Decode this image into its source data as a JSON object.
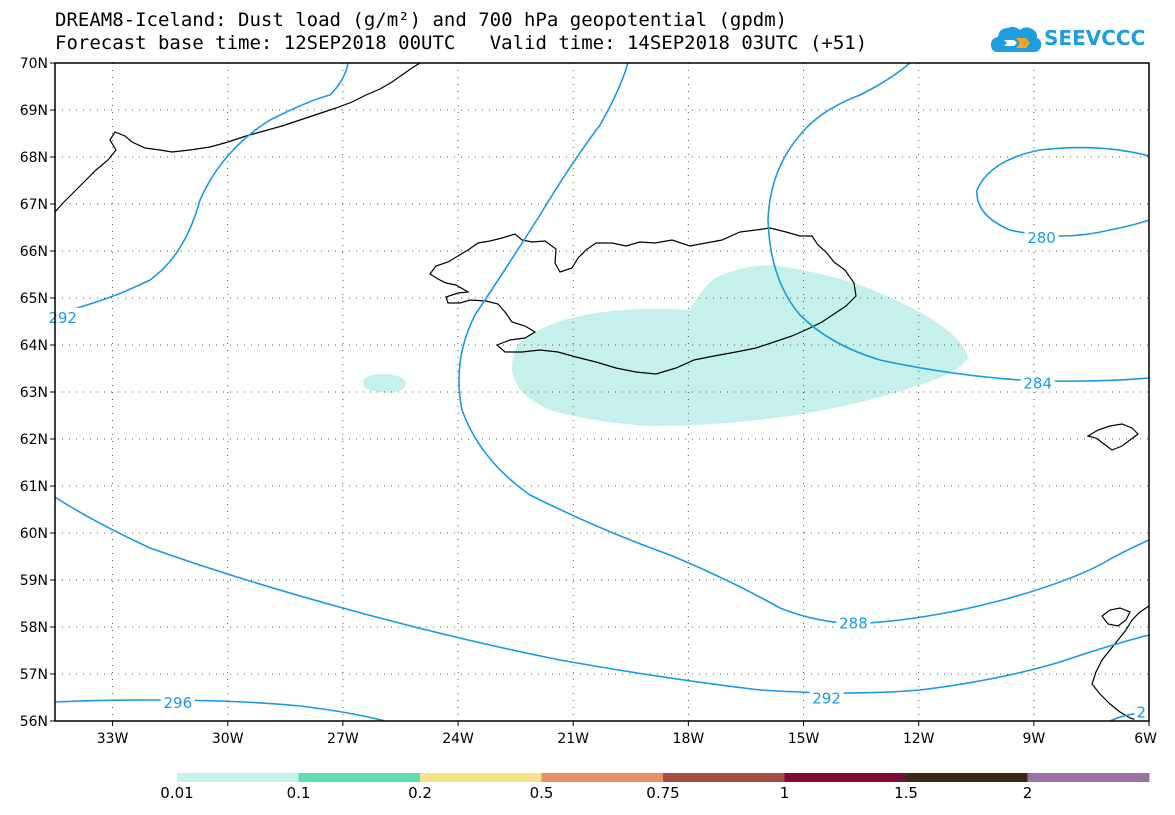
{
  "title": {
    "line1": "DREAM8-Iceland: Dust load (g/m²) and 700 hPa geopotential (gpdm)",
    "base_time": "Forecast base time: 12SEP2018 00UTC",
    "valid_time": "Valid time: 14SEP2018 03UTC (+51)"
  },
  "logo": {
    "text": "SEEVCCC",
    "icon": "cloud-logo-icon",
    "color": "#1e9ee0"
  },
  "map": {
    "projection": "lat-lon",
    "lon_range": [
      -34.5,
      -6
    ],
    "lat_range": [
      56,
      70
    ],
    "lat_ticks": [
      {
        "lat": 70,
        "label": "70N"
      },
      {
        "lat": 69,
        "label": "69N"
      },
      {
        "lat": 68,
        "label": "68N"
      },
      {
        "lat": 67,
        "label": "67N"
      },
      {
        "lat": 66,
        "label": "66N"
      },
      {
        "lat": 65,
        "label": "65N"
      },
      {
        "lat": 64,
        "label": "64N"
      },
      {
        "lat": 63,
        "label": "63N"
      },
      {
        "lat": 62,
        "label": "62N"
      },
      {
        "lat": 61,
        "label": "61N"
      },
      {
        "lat": 60,
        "label": "60N"
      },
      {
        "lat": 59,
        "label": "59N"
      },
      {
        "lat": 58,
        "label": "58N"
      },
      {
        "lat": 57,
        "label": "57N"
      },
      {
        "lat": 56,
        "label": "56N"
      }
    ],
    "lon_ticks": [
      {
        "lon": -33,
        "label": "33W"
      },
      {
        "lon": -30,
        "label": "30W"
      },
      {
        "lon": -27,
        "label": "27W"
      },
      {
        "lon": -24,
        "label": "24W"
      },
      {
        "lon": -21,
        "label": "21W"
      },
      {
        "lon": -18,
        "label": "18W"
      },
      {
        "lon": -15,
        "label": "15W"
      },
      {
        "lon": -12,
        "label": "12W"
      },
      {
        "lon": -9,
        "label": "9W"
      },
      {
        "lon": -6,
        "label": "6W"
      }
    ],
    "grid": "dotted",
    "contour_color": "#1a9be0",
    "contour_labels": [
      {
        "label": "292",
        "lon": -34.3,
        "lat": 64.6
      },
      {
        "label": "280",
        "lon": -8.8,
        "lat": 66.3
      },
      {
        "label": "284",
        "lon": -8.9,
        "lat": 63.2
      },
      {
        "label": "288",
        "lon": -13.7,
        "lat": 58.1
      },
      {
        "label": "292",
        "lon": -14.4,
        "lat": 56.5
      },
      {
        "label": "296",
        "lon": -31.3,
        "lat": 56.4
      },
      {
        "label": "2",
        "lon": -6.2,
        "lat": 56.2
      }
    ],
    "dust_fill_color": "#c6f1ea"
  },
  "colorbar": {
    "colors": [
      "#c6f1ea",
      "#5fdcb4",
      "#f5e488",
      "#e98f67",
      "#a94c45",
      "#7e0e36",
      "#3a2a12",
      "#9d72a2"
    ],
    "labels": [
      "0.01",
      "0.1",
      "0.2",
      "0.5",
      "0.75",
      "1",
      "1.5",
      "2"
    ]
  }
}
